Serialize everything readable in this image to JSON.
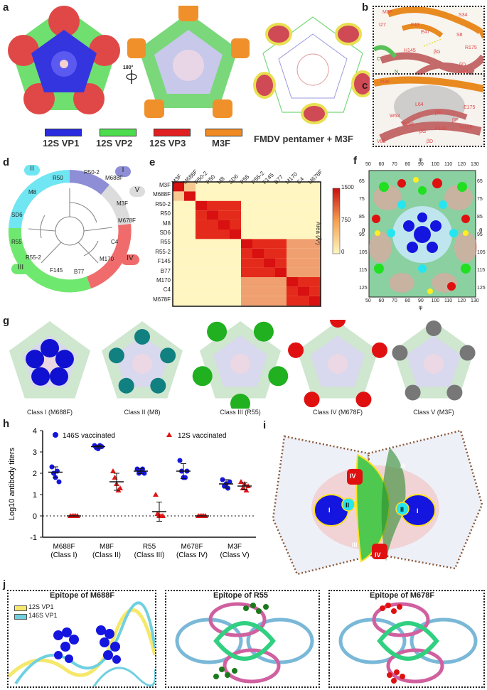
{
  "panels": {
    "a": "a",
    "b": "b",
    "c": "c",
    "d": "d",
    "e": "e",
    "f": "f",
    "g": "g",
    "h": "h",
    "i": "i",
    "j": "j"
  },
  "panel_a": {
    "rotation_label": "180°",
    "legend": [
      {
        "label": "12S VP1",
        "color": "#2a2adf"
      },
      {
        "label": "12S VP2",
        "color": "#4ddc4d"
      },
      {
        "label": "12S VP3",
        "color": "#e02020"
      },
      {
        "label": "M3F",
        "color": "#f08a24"
      }
    ],
    "pentamer_label": "FMDV pentamer + M3F"
  },
  "panel_b": {
    "residues": [
      "M3F",
      "I27",
      "E47",
      "F43",
      "S34",
      "S8",
      "H145",
      "βG",
      "βD",
      "V80",
      "R175",
      "C",
      "N"
    ]
  },
  "panel_c": {
    "residues": [
      "M3F",
      "W63",
      "L64",
      "βE",
      "F158",
      "F156",
      "βG",
      "βD",
      "V83",
      "E175",
      "βF",
      "W165"
    ]
  },
  "panel_d": {
    "classes": [
      "I",
      "II",
      "III",
      "IV",
      "V"
    ],
    "leaves": [
      "M688F",
      "R50-2",
      "R50",
      "M8",
      "SD6",
      "R55",
      "R55-2",
      "F145",
      "B77",
      "M170",
      "C4",
      "M678F",
      "M3F"
    ],
    "colors": {
      "I": "#8e8ed6",
      "II": "#6fe6f2",
      "III": "#6fe86f",
      "IV": "#f06c6c",
      "V": "#dcdcdc"
    }
  },
  "panel_e": {
    "labels": [
      "M3F",
      "M688F",
      "R50-2",
      "R50",
      "M8",
      "SD6",
      "R55",
      "R55-2",
      "F145",
      "B77",
      "M170",
      "C4",
      "M678F"
    ],
    "colorbar_title": "Area (Å²)",
    "colorbar_ticks": [
      "1500",
      "750",
      "0"
    ]
  },
  "panel_f": {
    "phi_ticks": [
      "50",
      "60",
      "70",
      "80",
      "90",
      "100",
      "110",
      "120",
      "130"
    ],
    "theta_ticks": [
      "65",
      "75",
      "85",
      "95",
      "105",
      "115",
      "125"
    ],
    "phi_label": "φ",
    "theta_label": "θ"
  },
  "panel_g": {
    "captions": [
      "Class I (M688F)",
      "Class II (M8)",
      "Class III (R55)",
      "Class IV (M678F)",
      "Class V (M3F)"
    ],
    "colors": [
      "#1010d0",
      "#108080",
      "#20b020",
      "#e01010",
      "#777777"
    ]
  },
  "panel_h": {
    "legend": [
      {
        "label": "146S vaccinated",
        "color": "#1515e0"
      },
      {
        "label": "12S vaccinated",
        "color": "#e01515"
      }
    ]
  },
  "panel_i": {
    "class_labels": [
      "I",
      "II",
      "III",
      "IV",
      "III",
      "IV",
      "II",
      "I"
    ]
  },
  "panel_j": {
    "titles": [
      "Epitope of M688F",
      "Epitope of R55",
      "Epitope of M678F"
    ],
    "legend": [
      {
        "label": "12S VP1",
        "color": "#f5e86b"
      },
      {
        "label": "146S VP1",
        "color": "#6fd0e0"
      }
    ]
  },
  "chart_data": {
    "type": "scatter",
    "title": "",
    "ylabel": "Log10 antibody titers",
    "xlabel": "",
    "ylim": [
      -1,
      4
    ],
    "yticks": [
      "-1",
      "0",
      "1",
      "2",
      "3",
      "4"
    ],
    "categories": [
      "M688F\n(Class I)",
      "M8F\n(Class II)",
      "R55\n(Class III)",
      "M678F\n(Class IV)",
      "M3F\n(Class V)"
    ],
    "category_lines": [
      [
        "M688F",
        "(Class I)"
      ],
      [
        "M8F",
        "(Class II)"
      ],
      [
        "R55",
        "(Class III)"
      ],
      [
        "M678F",
        "(Class IV)"
      ],
      [
        "M3F",
        "(Class V)"
      ]
    ],
    "series": [
      {
        "name": "146S vaccinated",
        "marker": "circle",
        "color": "#1515e0",
        "points": [
          [
            2.3,
            2.0,
            1.8,
            2.1,
            1.6
          ],
          [
            3.3,
            3.2,
            3.15,
            3.3,
            3.25
          ],
          [
            2.2,
            2.0,
            2.1,
            2.2,
            2.0
          ],
          [
            2.6,
            2.1,
            1.8,
            1.8,
            2.1
          ],
          [
            1.7,
            1.4,
            1.5,
            1.3,
            1.6
          ]
        ],
        "mean": [
          2.05,
          3.25,
          2.1,
          2.1,
          1.5
        ],
        "err": [
          0.25,
          0.07,
          0.12,
          0.35,
          0.2
        ]
      },
      {
        "name": "12S vaccinated",
        "marker": "triangle",
        "color": "#e01515",
        "points": [
          [
            0,
            0,
            0,
            0,
            0
          ],
          [
            2.1,
            1.8,
            1.5,
            1.2,
            1.3
          ],
          [
            1.0,
            0.1,
            0.0,
            0.0,
            0.0
          ],
          [
            0,
            0,
            0,
            0,
            0
          ],
          [
            1.6,
            1.3,
            1.5,
            1.2,
            1.4
          ]
        ],
        "mean": [
          0.0,
          1.6,
          0.2,
          0.0,
          1.4
        ],
        "err": [
          0.0,
          0.4,
          0.45,
          0.0,
          0.15
        ]
      }
    ]
  }
}
